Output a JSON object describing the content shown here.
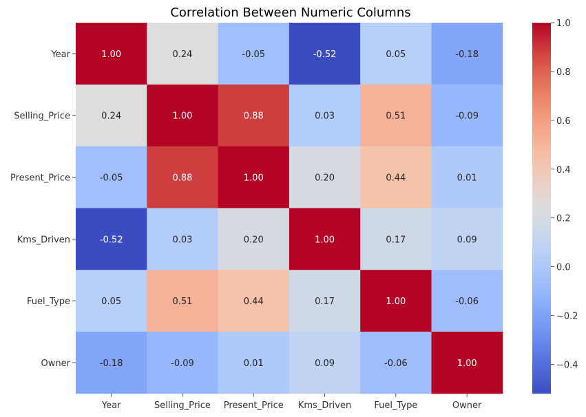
{
  "chart_data": {
    "type": "heatmap",
    "title": "Correlation Between Numeric Columns",
    "xlabel": "",
    "ylabel": "",
    "rows": [
      "Year",
      "Selling_Price",
      "Present_Price",
      "Kms_Driven",
      "Fuel_Type",
      "Owner"
    ],
    "columns": [
      "Year",
      "Selling_Price",
      "Present_Price",
      "Kms_Driven",
      "Fuel_Type",
      "Owner"
    ],
    "values": [
      [
        1.0,
        0.24,
        -0.05,
        -0.52,
        0.05,
        -0.18
      ],
      [
        0.24,
        1.0,
        0.88,
        0.03,
        0.51,
        -0.09
      ],
      [
        -0.05,
        0.88,
        1.0,
        0.2,
        0.44,
        0.01
      ],
      [
        -0.52,
        0.03,
        0.2,
        1.0,
        0.17,
        0.09
      ],
      [
        0.05,
        0.51,
        0.44,
        0.17,
        1.0,
        -0.06
      ],
      [
        -0.18,
        -0.09,
        0.01,
        0.09,
        -0.06,
        1.0
      ]
    ],
    "value_format": "0.00",
    "colormap": "coolwarm",
    "colorbar": {
      "range": [
        -0.52,
        1.0
      ],
      "ticks": [
        -0.4,
        -0.2,
        0.0,
        0.2,
        0.4,
        0.6,
        0.8,
        1.0
      ],
      "tick_labels": [
        "−0.4",
        "−0.2",
        "0.0",
        "0.2",
        "0.4",
        "0.6",
        "0.8",
        "1.0"
      ]
    },
    "grid": false
  }
}
